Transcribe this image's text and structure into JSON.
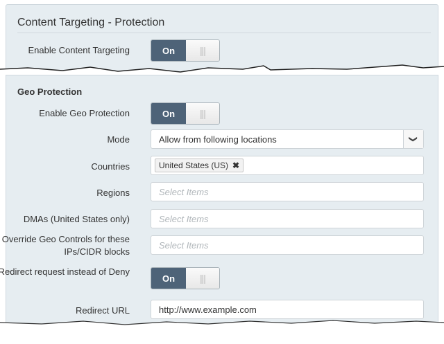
{
  "content_targeting": {
    "title": "Content Targeting - Protection",
    "enable_label": "Enable Content Targeting",
    "toggle_on": "On",
    "toggle_off_grip": "|||"
  },
  "geo": {
    "title": "Geo Protection",
    "enable_label": "Enable Geo Protection",
    "toggle_on": "On",
    "toggle_off_grip": "|||",
    "mode_label": "Mode",
    "mode_value": "Allow from following locations",
    "mode_caret": "❯",
    "countries_label": "Countries",
    "countries": [
      {
        "label": "United States (US)",
        "remove": "✖"
      }
    ],
    "regions_label": "Regions",
    "regions_placeholder": "Select Items",
    "dmas_label": "DMAs (United States only)",
    "dmas_placeholder": "Select Items",
    "override_label": "Override Geo Controls for these IPs/CIDR blocks",
    "override_placeholder": "Select Items",
    "redirect_label": "Redirect request instead of Deny",
    "redirect_toggle_on": "On",
    "redirect_url_label": "Redirect URL",
    "redirect_url_value": "http://www.example.com"
  },
  "colors": {
    "panel_bg": "#e6edf1",
    "toggle_on": "#4e6378"
  }
}
